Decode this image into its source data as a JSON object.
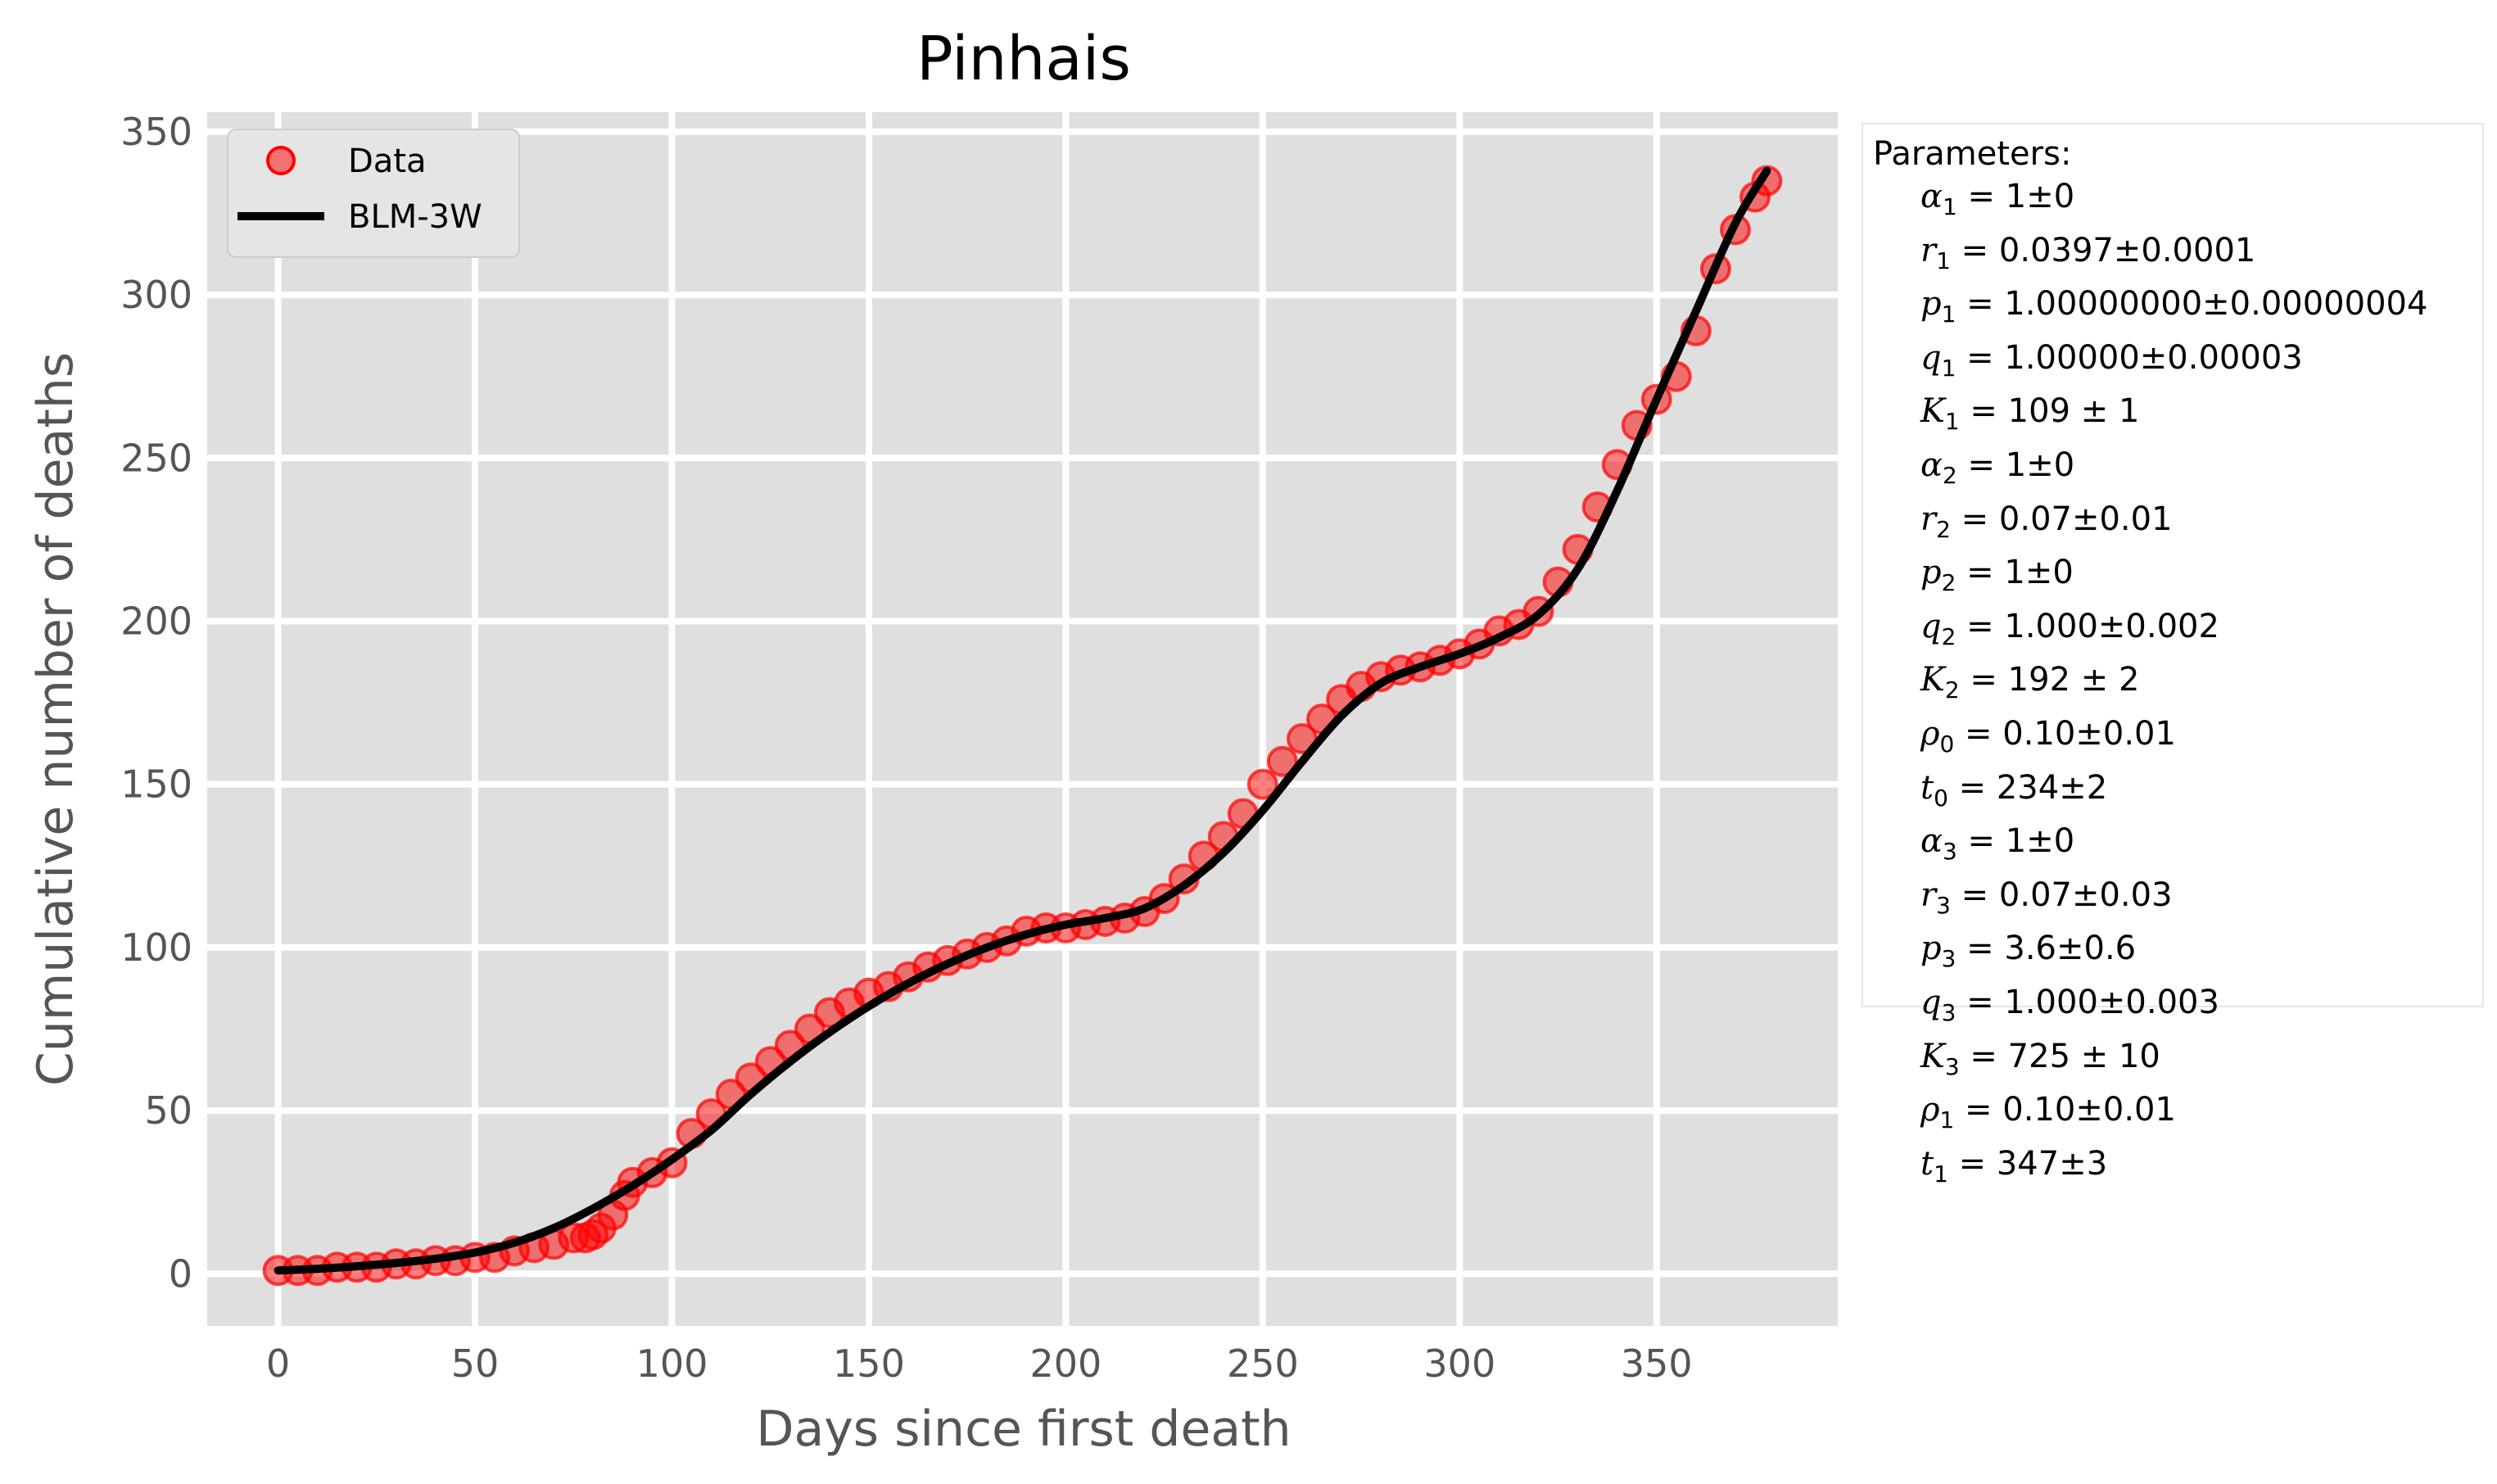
{
  "chart_data": {
    "type": "scatter",
    "title": "Pinhais",
    "xlabel": "Days since first death",
    "ylabel": "Cumulative number of deaths",
    "xlim": [
      -18,
      396
    ],
    "ylim": [
      -16,
      356
    ],
    "xticks": [
      0,
      50,
      100,
      150,
      200,
      250,
      300,
      350
    ],
    "yticks": [
      0,
      50,
      100,
      150,
      200,
      250,
      300,
      350
    ],
    "grid": true,
    "legend": {
      "placement": "top-left",
      "entries": [
        "Data",
        "BLM-3W"
      ]
    },
    "series": [
      {
        "name": "Data",
        "kind": "markers",
        "color": "#ff0000",
        "x": [
          0,
          5,
          10,
          15,
          20,
          25,
          30,
          35,
          40,
          45,
          50,
          55,
          60,
          65,
          70,
          75,
          78,
          80,
          82,
          85,
          88,
          90,
          95,
          100,
          105,
          110,
          115,
          120,
          125,
          130,
          135,
          140,
          145,
          150,
          155,
          160,
          165,
          170,
          175,
          180,
          185,
          190,
          195,
          200,
          205,
          210,
          215,
          220,
          225,
          230,
          235,
          240,
          245,
          250,
          255,
          260,
          265,
          270,
          275,
          280,
          285,
          290,
          295,
          300,
          305,
          310,
          315,
          320,
          325,
          330,
          335,
          340,
          345,
          350,
          355,
          360,
          365,
          370,
          375,
          378
        ],
        "y": [
          1,
          1,
          1,
          2,
          2,
          2,
          3,
          3,
          4,
          4,
          5,
          5,
          7,
          8,
          9,
          11,
          11,
          12,
          14,
          18,
          24,
          28,
          31,
          34,
          43,
          49,
          55,
          60,
          65,
          70,
          75,
          80,
          83,
          86,
          88,
          91,
          94,
          96,
          98,
          100,
          102,
          105,
          106,
          106,
          107,
          108,
          109,
          111,
          115,
          121,
          128,
          134,
          141,
          150,
          157,
          164,
          170,
          176,
          180,
          183,
          185,
          186,
          188,
          190,
          193,
          197,
          199,
          203,
          212,
          222,
          235,
          248,
          260,
          268,
          275,
          289,
          308,
          320,
          330,
          335
        ]
      },
      {
        "name": "BLM-3W",
        "kind": "line",
        "color": "#000000",
        "x": [
          0,
          10,
          20,
          30,
          40,
          50,
          60,
          70,
          80,
          90,
          100,
          110,
          120,
          130,
          140,
          150,
          160,
          170,
          180,
          190,
          200,
          210,
          220,
          230,
          240,
          250,
          260,
          270,
          280,
          290,
          300,
          310,
          320,
          330,
          340,
          350,
          360,
          370,
          378
        ],
        "y": [
          1,
          1.5,
          2.3,
          3.3,
          4.6,
          6.5,
          9.5,
          14,
          20,
          27,
          35,
          44,
          55,
          65,
          74,
          82,
          89,
          95,
          100,
          104,
          107,
          109,
          112,
          119,
          129,
          142,
          157,
          171,
          181,
          186,
          190,
          195,
          202,
          216,
          240,
          268,
          295,
          322,
          338
        ]
      }
    ]
  },
  "parameters": {
    "heading": "Parameters:",
    "rows": [
      {
        "sym": "α",
        "sub": "1",
        "val": "= 1±0"
      },
      {
        "sym": "r",
        "sub": "1",
        "val": "= 0.0397±0.0001"
      },
      {
        "sym": "p",
        "sub": "1",
        "val": "= 1.00000000±0.00000004"
      },
      {
        "sym": "q",
        "sub": "1",
        "val": "= 1.00000±0.00003"
      },
      {
        "sym": "K",
        "sub": "1",
        "val": "= 109 ± 1"
      },
      {
        "sym": "α",
        "sub": "2",
        "val": "= 1±0"
      },
      {
        "sym": "r",
        "sub": "2",
        "val": "= 0.07±0.01"
      },
      {
        "sym": "p",
        "sub": "2",
        "val": "= 1±0"
      },
      {
        "sym": "q",
        "sub": "2",
        "val": "= 1.000±0.002"
      },
      {
        "sym": "K",
        "sub": "2",
        "val": "= 192 ± 2"
      },
      {
        "sym": "ρ",
        "sub": "0",
        "val": "= 0.10±0.01"
      },
      {
        "sym": "t",
        "sub": "0",
        "val": "= 234±2"
      },
      {
        "sym": "α",
        "sub": "3",
        "val": "= 1±0"
      },
      {
        "sym": "r",
        "sub": "3",
        "val": "= 0.07±0.03"
      },
      {
        "sym": "p",
        "sub": "3",
        "val": "= 3.6±0.6"
      },
      {
        "sym": "q",
        "sub": "3",
        "val": "= 1.000±0.003"
      },
      {
        "sym": "K",
        "sub": "3",
        "val": "= 725 ± 10"
      },
      {
        "sym": "ρ",
        "sub": "1",
        "val": "= 0.10±0.01"
      },
      {
        "sym": "t",
        "sub": "1",
        "val": "= 347±3"
      }
    ]
  }
}
